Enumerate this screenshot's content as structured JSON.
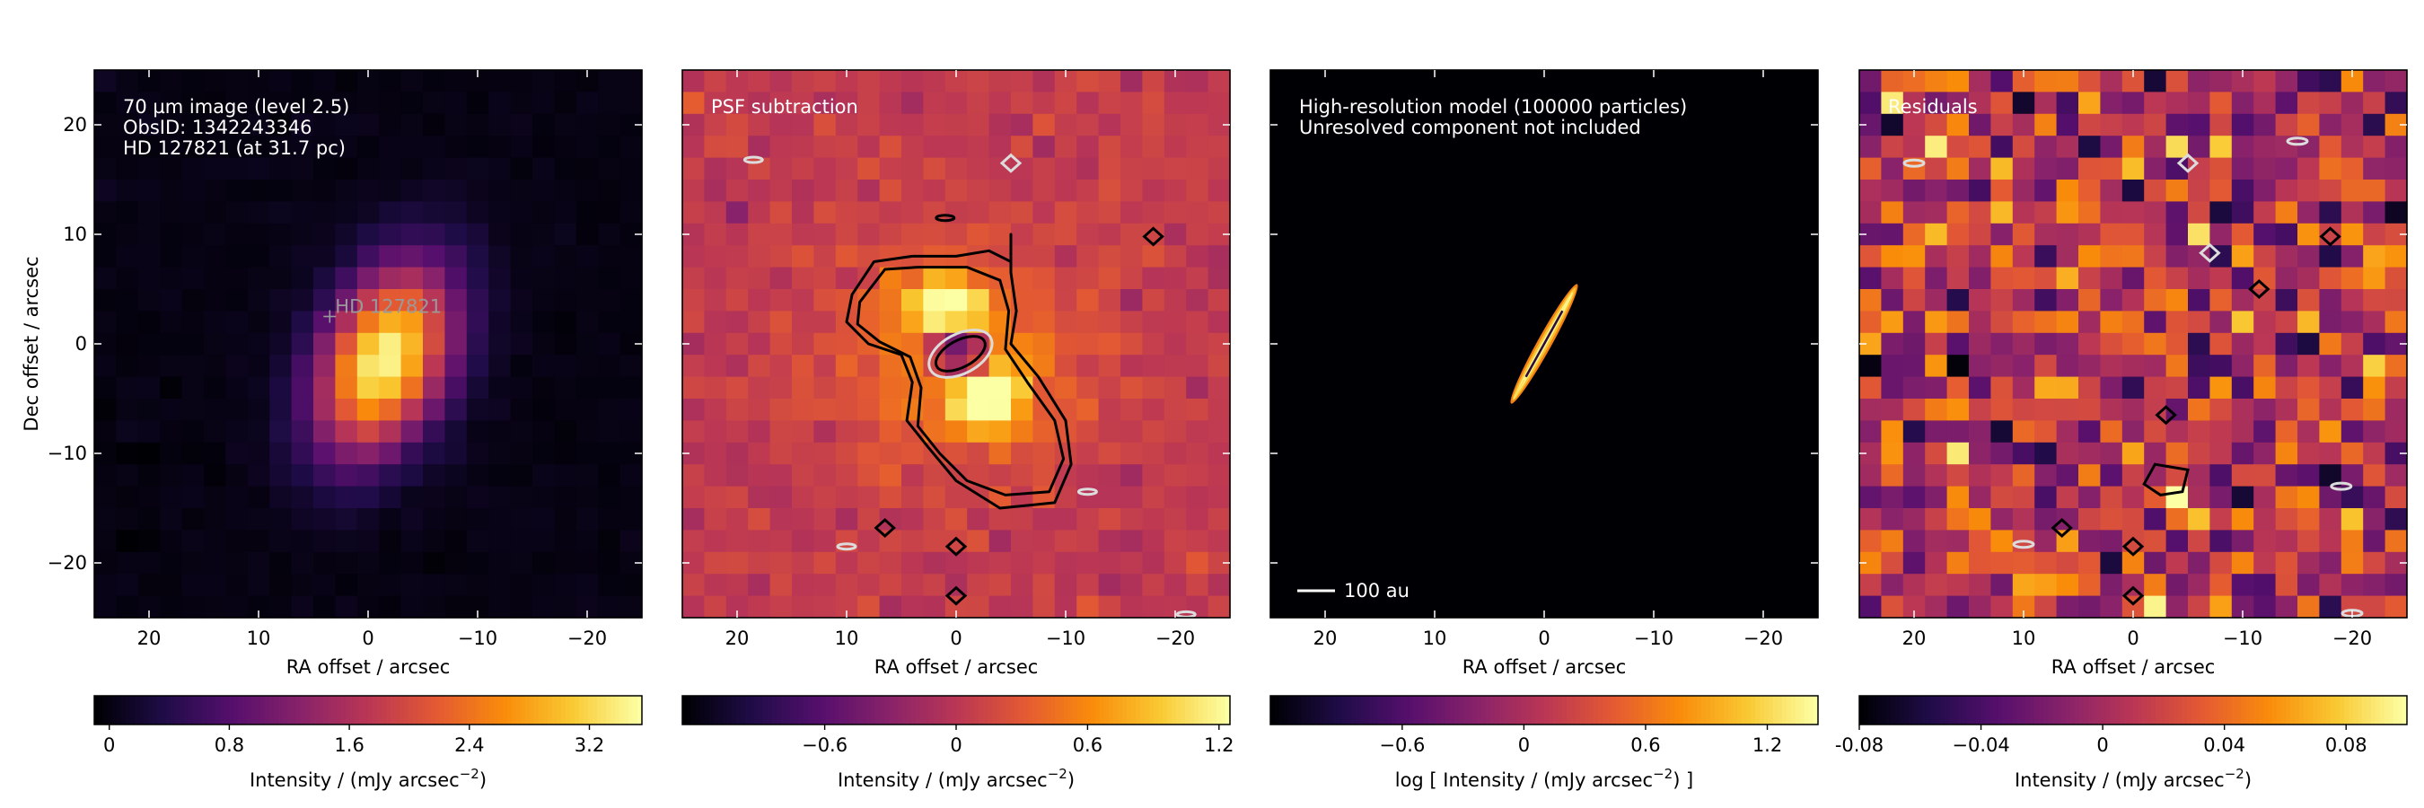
{
  "chart_data": [
    {
      "type": "heatmap",
      "panel": "observation",
      "colormap": "inferno",
      "xlabel": "RA offset / arcsec",
      "ylabel": "Dec offset / arcsec",
      "xlim": [
        25,
        -25
      ],
      "ylim": [
        -25,
        25
      ],
      "x_ticks": [
        20,
        10,
        0,
        -10,
        -20
      ],
      "y_ticks": [
        20,
        10,
        0,
        -10,
        -20
      ],
      "x_tick_labels": [
        "20",
        "10",
        "0",
        "−10",
        "−20"
      ],
      "y_tick_labels": [
        "20",
        "10",
        "0",
        "−10",
        "−20"
      ],
      "annotations": [
        "70 µm image (level 2.5)",
        "ObsID: 1342243346",
        "HD 127821 (at 31.7 pc)"
      ],
      "star_marker": {
        "label": "HD 127821",
        "x": 3.5,
        "y": 2.5
      },
      "colorbar": {
        "label": "Intensity / (mJy arcsec",
        "label_exponent": "−2",
        "label_suffix": ")",
        "range": [
          -0.1,
          3.55
        ],
        "ticks": [
          0,
          0.8,
          1.6,
          2.4,
          3.2
        ],
        "tick_labels": [
          "0",
          "0.8",
          "1.6",
          "2.4",
          "3.2"
        ]
      },
      "peak": {
        "x": -1.5,
        "y": -1.5,
        "value": 3.5
      }
    },
    {
      "type": "heatmap",
      "panel": "psf-subtraction",
      "colormap": "inferno",
      "xlabel": "RA offset / arcsec",
      "xlim": [
        25,
        -25
      ],
      "ylim": [
        -25,
        25
      ],
      "x_ticks": [
        20,
        10,
        0,
        -10,
        -20
      ],
      "x_tick_labels": [
        "20",
        "10",
        "0",
        "−10",
        "−20"
      ],
      "annotations": [
        "PSF subtraction"
      ],
      "contour_colors": [
        "#000000",
        "#dcdcdc"
      ],
      "colorbar": {
        "label": "Intensity / (mJy arcsec",
        "label_exponent": "−2",
        "label_suffix": ")",
        "range": [
          -1.25,
          1.25
        ],
        "ticks": [
          -0.6,
          0,
          0.6,
          1.2
        ],
        "tick_labels": [
          "−0.6",
          "0",
          "0.6",
          "1.2"
        ]
      }
    },
    {
      "type": "heatmap",
      "panel": "model",
      "colormap": "inferno",
      "xlabel": "RA offset / arcsec",
      "xlim": [
        25,
        -25
      ],
      "ylim": [
        -25,
        25
      ],
      "x_ticks": [
        20,
        10,
        0,
        -10,
        -20
      ],
      "x_tick_labels": [
        "20",
        "10",
        "0",
        "−10",
        "−20"
      ],
      "annotations": [
        "High-resolution model (100000 particles)",
        "Unresolved component not included"
      ],
      "scale_bar_label": "100 au",
      "colorbar": {
        "label": "log [ Intensity / (mJy arcsec",
        "label_exponent": "−2",
        "label_suffix": ") ]",
        "range": [
          -1.25,
          1.45
        ],
        "ticks": [
          -0.6,
          0,
          0.6,
          1.2
        ],
        "tick_labels": [
          "−0.6",
          "0",
          "0.6",
          "1.2"
        ]
      }
    },
    {
      "type": "heatmap",
      "panel": "residuals",
      "colormap": "inferno",
      "xlabel": "RA offset / arcsec",
      "xlim": [
        25,
        -25
      ],
      "ylim": [
        -25,
        25
      ],
      "x_ticks": [
        20,
        10,
        0,
        -10,
        -20
      ],
      "x_tick_labels": [
        "20",
        "10",
        "0",
        "−10",
        "−20"
      ],
      "annotations": [
        "Residuals"
      ],
      "contour_colors": [
        "#000000",
        "#dcdcdc"
      ],
      "colorbar": {
        "label": "Intensity / (mJy arcsec",
        "label_exponent": "−2",
        "label_suffix": ")",
        "range": [
          -0.08,
          0.1
        ],
        "ticks": [
          -0.08,
          -0.04,
          0,
          0.04,
          0.08
        ],
        "tick_labels": [
          "-0.08",
          "−0.04",
          "0",
          "0.04",
          "0.08"
        ]
      }
    }
  ]
}
